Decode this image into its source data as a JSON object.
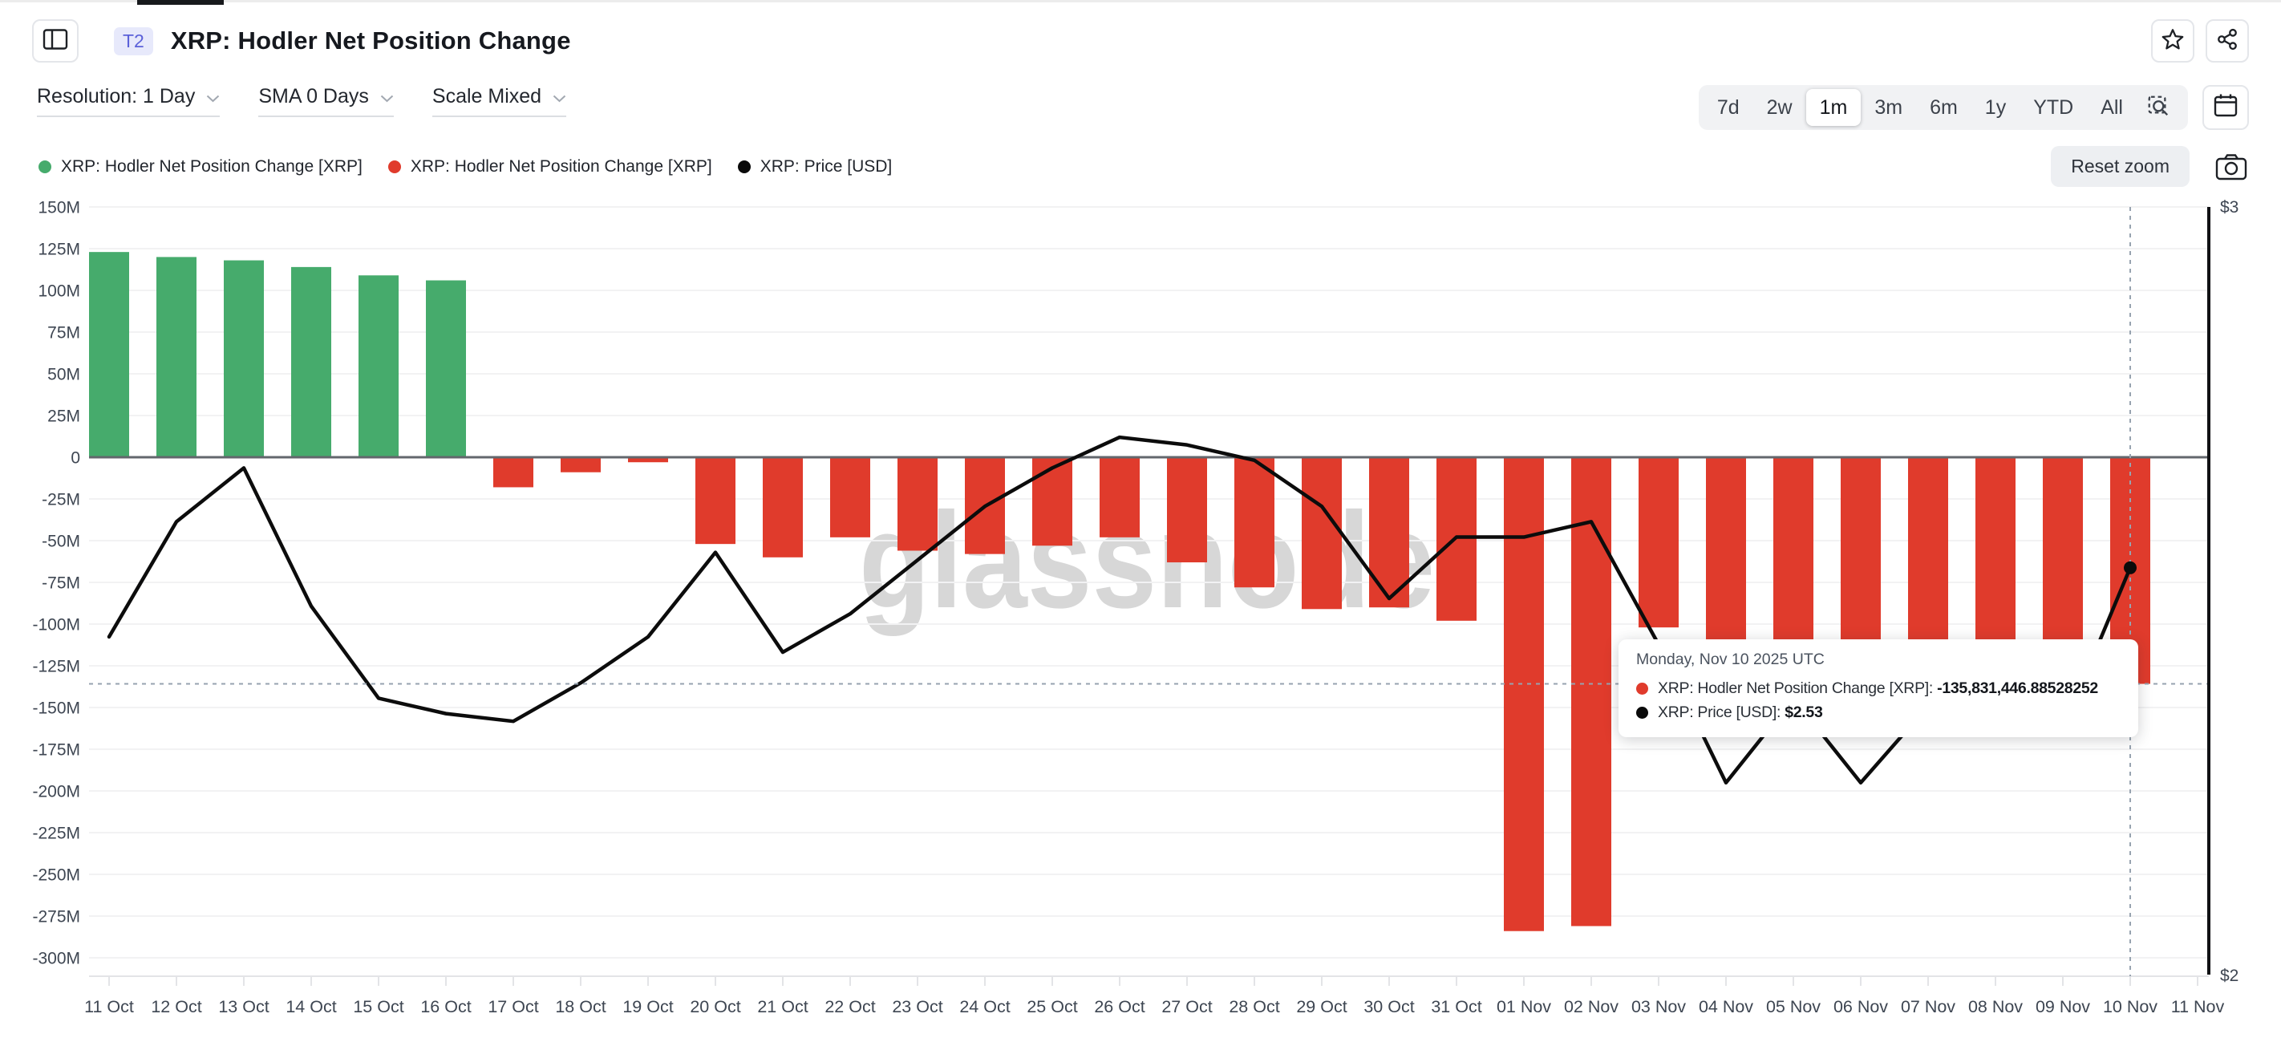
{
  "header": {
    "badge": "T2",
    "title": "XRP: Hodler Net Position Change"
  },
  "controls": {
    "resolution": "Resolution: 1 Day",
    "sma": "SMA 0 Days",
    "scale": "Scale Mixed"
  },
  "ranges": {
    "options": [
      "7d",
      "2w",
      "1m",
      "3m",
      "6m",
      "1y",
      "YTD",
      "All"
    ],
    "active": "1m"
  },
  "buttons": {
    "reset_zoom": "Reset zoom"
  },
  "legend": {
    "items": [
      {
        "label": "XRP: Hodler Net Position Change [XRP]",
        "color": "#46ab6c"
      },
      {
        "label": "XRP: Hodler Net Position Change [XRP]",
        "color": "#e03b2c"
      },
      {
        "label": "XRP: Price [USD]",
        "color": "#0a0a0a"
      }
    ]
  },
  "watermark": "glassnode",
  "tooltip": {
    "date": "Monday, Nov 10 2025 UTC",
    "rows": [
      {
        "label": "XRP: Hodler Net Position Change [XRP]",
        "value": "-135,831,446.88528252",
        "color": "#e03b2c"
      },
      {
        "label": "XRP: Price [USD]",
        "value": "$2.53",
        "color": "#0a0a0a"
      }
    ]
  },
  "chart_data": {
    "type": "mixed",
    "title": "XRP: Hodler Net Position Change",
    "categories": [
      "11 Oct",
      "12 Oct",
      "13 Oct",
      "14 Oct",
      "15 Oct",
      "16 Oct",
      "17 Oct",
      "18 Oct",
      "19 Oct",
      "20 Oct",
      "21 Oct",
      "22 Oct",
      "23 Oct",
      "24 Oct",
      "25 Oct",
      "26 Oct",
      "27 Oct",
      "28 Oct",
      "29 Oct",
      "30 Oct",
      "31 Oct",
      "01 Nov",
      "02 Nov",
      "03 Nov",
      "04 Nov",
      "05 Nov",
      "06 Nov",
      "07 Nov",
      "08 Nov",
      "09 Nov",
      "10 Nov",
      "11 Nov"
    ],
    "series": [
      {
        "name": "XRP: Hodler Net Position Change [XRP]",
        "type": "bar",
        "axis": "left",
        "unit": "XRP",
        "positive_color": "#46ab6c",
        "negative_color": "#e03b2c",
        "values_millions": [
          123,
          120,
          118,
          114,
          109,
          106,
          -18,
          -9,
          -3,
          -52,
          -60,
          -48,
          -56,
          -58,
          -53,
          -48,
          -63,
          -78,
          -91,
          -90,
          -98,
          -284,
          -281,
          -102,
          -152,
          -140,
          -146,
          -150,
          -142,
          -138,
          -135.831446885,
          null
        ]
      },
      {
        "name": "XRP: Price [USD]",
        "type": "line",
        "axis": "right",
        "unit": "USD",
        "color": "#0c0c0c",
        "values_usd": [
          2.44,
          2.59,
          2.66,
          2.48,
          2.36,
          2.34,
          2.33,
          2.38,
          2.44,
          2.55,
          2.42,
          2.47,
          2.54,
          2.61,
          2.66,
          2.7,
          2.69,
          2.67,
          2.61,
          2.49,
          2.57,
          2.57,
          2.59,
          2.43,
          2.25,
          2.36,
          2.25,
          2.35,
          2.33,
          2.32,
          2.53,
          null
        ]
      }
    ],
    "left_axis": {
      "ticks": [
        "150M",
        "125M",
        "100M",
        "75M",
        "50M",
        "25M",
        "0",
        "-25M",
        "-50M",
        "-75M",
        "-100M",
        "-125M",
        "-150M",
        "-175M",
        "-200M",
        "-225M",
        "-250M",
        "-275M",
        "-300M"
      ],
      "range_millions": [
        -300,
        150
      ],
      "tick_step_millions": 25,
      "grid": true
    },
    "right_axis": {
      "ticks": [
        "$3",
        "$2"
      ],
      "range_usd": [
        2,
        3
      ]
    },
    "highlight": {
      "category": "10 Nov",
      "net_position_change_label": "-135,831,446.88528252",
      "price_label": "$2.53"
    }
  }
}
